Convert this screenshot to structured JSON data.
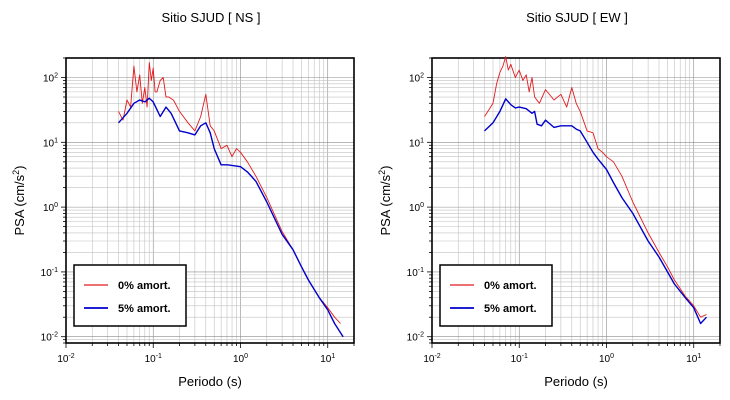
{
  "chart_data": [
    {
      "type": "line",
      "title": "Sitio SJUD [ NS ]",
      "xlabel": "Periodo (s)",
      "ylabel_main": "PSA (cm/s",
      "ylabel_sup": "2",
      "ylabel_tail": ")",
      "x_scale": "log",
      "y_scale": "log",
      "xlim": [
        0.01,
        20
      ],
      "ylim": [
        0.008,
        200
      ],
      "x_ticks": [
        {
          "base": "10",
          "exp": "-2",
          "value": 0.01
        },
        {
          "base": "10",
          "exp": "-1",
          "value": 0.1
        },
        {
          "base": "10",
          "exp": "0",
          "value": 1
        },
        {
          "base": "10",
          "exp": "1",
          "value": 10
        }
      ],
      "y_ticks": [
        {
          "base": "10",
          "exp": "-2",
          "value": 0.01
        },
        {
          "base": "10",
          "exp": "-1",
          "value": 0.1
        },
        {
          "base": "10",
          "exp": "0",
          "value": 1
        },
        {
          "base": "10",
          "exp": "1",
          "value": 10
        },
        {
          "base": "10",
          "exp": "2",
          "value": 100
        }
      ],
      "grid": true,
      "legend_position": "bottom-left",
      "series": [
        {
          "name": "0% amort.",
          "color": "#e31a1c",
          "x": [
            0.04,
            0.045,
            0.05,
            0.055,
            0.06,
            0.065,
            0.07,
            0.075,
            0.08,
            0.085,
            0.09,
            0.095,
            0.1,
            0.105,
            0.11,
            0.12,
            0.13,
            0.14,
            0.15,
            0.17,
            0.2,
            0.25,
            0.3,
            0.35,
            0.4,
            0.45,
            0.5,
            0.6,
            0.7,
            0.8,
            0.9,
            1.0,
            1.2,
            1.5,
            2,
            3,
            4,
            5,
            6,
            8,
            10,
            12,
            14
          ],
          "y": [
            30,
            22,
            45,
            35,
            150,
            60,
            110,
            40,
            70,
            35,
            170,
            90,
            140,
            60,
            60,
            90,
            100,
            50,
            50,
            45,
            30,
            20,
            15,
            25,
            55,
            18,
            15,
            8,
            9,
            6,
            8,
            7,
            5,
            3,
            1.4,
            0.42,
            0.22,
            0.12,
            0.075,
            0.04,
            0.028,
            0.02,
            0.016
          ]
        },
        {
          "name": "5% amort.",
          "color": "#0000cc",
          "x": [
            0.04,
            0.05,
            0.06,
            0.07,
            0.08,
            0.09,
            0.1,
            0.11,
            0.12,
            0.14,
            0.16,
            0.2,
            0.25,
            0.3,
            0.35,
            0.4,
            0.45,
            0.5,
            0.6,
            0.7,
            0.8,
            1.0,
            1.2,
            1.5,
            2,
            3,
            4,
            5,
            6,
            8,
            10,
            12,
            15
          ],
          "y": [
            20,
            28,
            40,
            45,
            42,
            48,
            42,
            32,
            25,
            35,
            28,
            15,
            14,
            13,
            18,
            20,
            14,
            8,
            4.5,
            4.5,
            4.4,
            4.2,
            3.5,
            2.5,
            1.2,
            0.38,
            0.22,
            0.12,
            0.075,
            0.04,
            0.026,
            0.016,
            0.01
          ]
        }
      ]
    },
    {
      "type": "line",
      "title": "Sitio SJUD [ EW ]",
      "xlabel": "Periodo (s)",
      "ylabel_main": "PSA (cm/s",
      "ylabel_sup": "2",
      "ylabel_tail": ")",
      "x_scale": "log",
      "y_scale": "log",
      "xlim": [
        0.01,
        20
      ],
      "ylim": [
        0.008,
        200
      ],
      "x_ticks": [
        {
          "base": "10",
          "exp": "-2",
          "value": 0.01
        },
        {
          "base": "10",
          "exp": "-1",
          "value": 0.1
        },
        {
          "base": "10",
          "exp": "0",
          "value": 1
        },
        {
          "base": "10",
          "exp": "1",
          "value": 10
        }
      ],
      "y_ticks": [
        {
          "base": "10",
          "exp": "-2",
          "value": 0.01
        },
        {
          "base": "10",
          "exp": "-1",
          "value": 0.1
        },
        {
          "base": "10",
          "exp": "0",
          "value": 1
        },
        {
          "base": "10",
          "exp": "1",
          "value": 10
        },
        {
          "base": "10",
          "exp": "2",
          "value": 100
        }
      ],
      "grid": true,
      "legend_position": "bottom-left",
      "series": [
        {
          "name": "0% amort.",
          "color": "#e31a1c",
          "x": [
            0.04,
            0.045,
            0.05,
            0.055,
            0.06,
            0.065,
            0.07,
            0.075,
            0.08,
            0.09,
            0.1,
            0.11,
            0.12,
            0.13,
            0.14,
            0.15,
            0.17,
            0.2,
            0.25,
            0.3,
            0.35,
            0.4,
            0.45,
            0.5,
            0.6,
            0.7,
            0.8,
            0.9,
            1.0,
            1.2,
            1.5,
            2,
            3,
            4,
            5,
            6,
            8,
            10,
            12,
            14
          ],
          "y": [
            25,
            32,
            40,
            80,
            120,
            150,
            210,
            130,
            160,
            100,
            130,
            90,
            110,
            60,
            100,
            50,
            40,
            65,
            45,
            55,
            35,
            70,
            40,
            30,
            15,
            14,
            8,
            7,
            6,
            5,
            3,
            1.2,
            0.4,
            0.2,
            0.12,
            0.075,
            0.042,
            0.03,
            0.02,
            0.022
          ]
        },
        {
          "name": "5% amort.",
          "color": "#0000cc",
          "x": [
            0.04,
            0.05,
            0.06,
            0.07,
            0.08,
            0.09,
            0.1,
            0.12,
            0.14,
            0.15,
            0.16,
            0.18,
            0.2,
            0.25,
            0.3,
            0.35,
            0.4,
            0.45,
            0.5,
            0.6,
            0.7,
            0.8,
            1.0,
            1.2,
            1.5,
            2,
            3,
            4,
            5,
            6,
            8,
            10,
            12,
            14
          ],
          "y": [
            15,
            20,
            30,
            47,
            38,
            34,
            35,
            33,
            28,
            30,
            19,
            18,
            22,
            17,
            18,
            18,
            18,
            16,
            15,
            10,
            7,
            5.5,
            3.8,
            2.4,
            1.4,
            0.8,
            0.3,
            0.17,
            0.1,
            0.065,
            0.04,
            0.028,
            0.016,
            0.02
          ]
        }
      ]
    }
  ]
}
